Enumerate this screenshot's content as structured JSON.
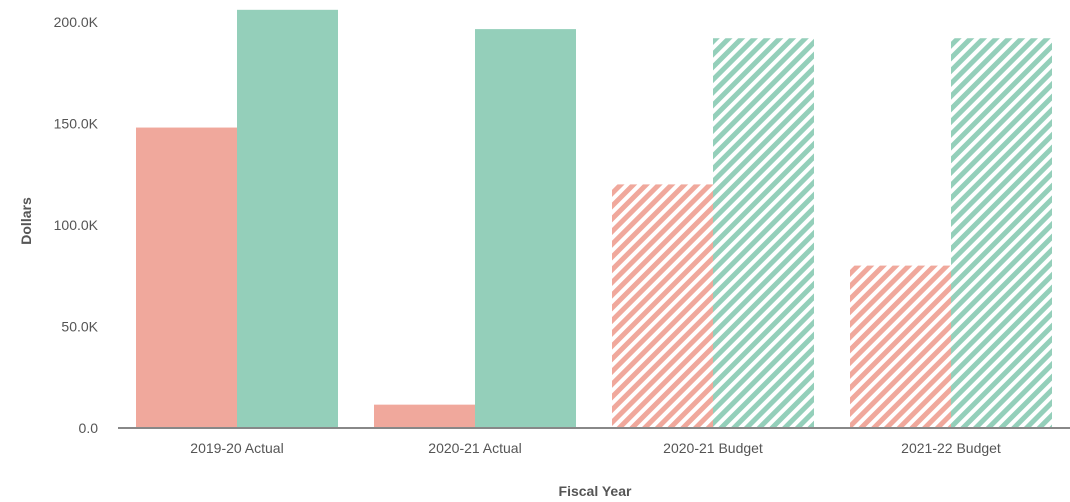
{
  "chart_data": {
    "type": "bar",
    "xlabel": "Fiscal Year",
    "ylabel": "Dollars",
    "categories": [
      "2019-20 Actual",
      "2020-21 Actual",
      "2020-21 Budget",
      "2021-22 Budget"
    ],
    "ylim": [
      0,
      200000
    ],
    "yticks": [
      {
        "value": 0,
        "label": "0.0"
      },
      {
        "value": 50000,
        "label": "50.0K"
      },
      {
        "value": 100000,
        "label": "100.0K"
      },
      {
        "value": 150000,
        "label": "150.0K"
      },
      {
        "value": 200000,
        "label": "200.0K"
      }
    ],
    "grid": false,
    "series": [
      {
        "color": "#f0a89c",
        "values": [
          148000,
          11500,
          120000,
          80000
        ],
        "hatched": [
          false,
          false,
          true,
          true
        ]
      },
      {
        "color": "#94cfba",
        "values": [
          206000,
          196500,
          192000,
          192000
        ],
        "hatched": [
          false,
          false,
          true,
          true
        ]
      }
    ]
  }
}
